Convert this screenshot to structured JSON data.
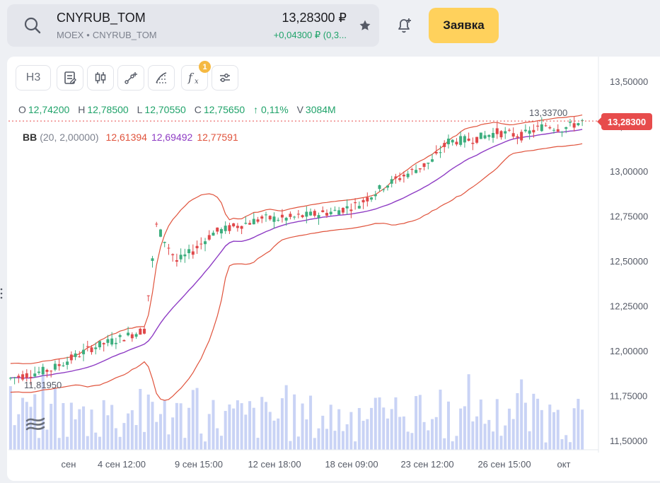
{
  "header": {
    "ticker": "CNYRUB_TOM",
    "exchange": "MOEX",
    "instrument": "CNYRUB_TOM",
    "price": "13,28300 ₽",
    "change": "+0,04300 ₽ (0,3...",
    "order_button": "Заявка"
  },
  "toolbar": {
    "interval": "Н3",
    "indicators_badge": "1",
    "icons": [
      "notes-icon",
      "candles-icon",
      "draw-line-icon",
      "fibonacci-icon",
      "indicators-icon",
      "settings-icon"
    ]
  },
  "ohlc": {
    "o_label": "O",
    "o": "12,74200",
    "h_label": "H",
    "h": "12,78500",
    "l_label": "L",
    "l": "12,70550",
    "c_label": "C",
    "c": "12,75650",
    "change": "↑ 0,11%",
    "v_label": "V",
    "v": "3084M"
  },
  "bb": {
    "name": "BB",
    "params": "(20, 2,00000)",
    "lower": "12,61394",
    "middle": "12,69492",
    "upper": "12,77591"
  },
  "chart_labels": {
    "last_price": "13,28300",
    "high_marker": "13,33700",
    "low_marker": "11,81950"
  },
  "colors": {
    "up": "#3cae7e",
    "down": "#e0484a",
    "bb_band": "#e0533c",
    "bb_mid": "#8e3cc4",
    "volume": "#c9d3f5",
    "accent": "#ffd15c"
  },
  "chart_data": {
    "type": "candlestick",
    "y_ticks": [
      "13,50000",
      "13,25000",
      "13,00000",
      "12,75000",
      "12,50000",
      "12,25000",
      "12,00000",
      "11,75000",
      "11,50000"
    ],
    "x_ticks": [
      "сен",
      "4 сен 12:00",
      "9 сен 15:00",
      "12 сен 18:00",
      "18 сен 09:00",
      "23 сен 12:00",
      "26 сен 15:00",
      "окт"
    ],
    "ylim": [
      11.48,
      13.57
    ],
    "last_price": 13.283,
    "high": 13.337,
    "low": 11.8195
  }
}
